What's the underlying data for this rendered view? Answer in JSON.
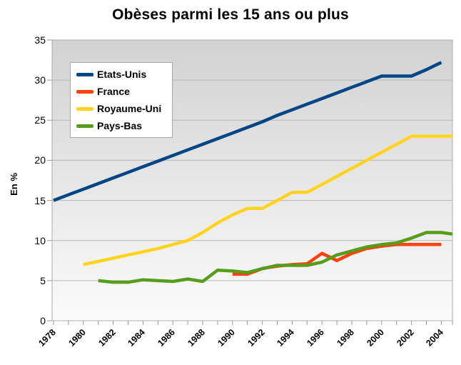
{
  "title": "Obèses parmi les 15 ans ou plus",
  "y_axis": {
    "label": "En %",
    "ticks": [
      0,
      5,
      10,
      15,
      20,
      25,
      30,
      35
    ]
  },
  "x_axis": {
    "label_years": [
      1978,
      1980,
      1982,
      1984,
      1986,
      1988,
      1990,
      1992,
      1994,
      1996,
      1998,
      2000,
      2002,
      2004
    ],
    "minor_tick_start": 1978,
    "minor_tick_end": 2005
  },
  "legend": {
    "items": [
      {
        "id": "etats-unis",
        "label": "Etats-Unis",
        "color": "#004586"
      },
      {
        "id": "france",
        "label": "France",
        "color": "#ff420e"
      },
      {
        "id": "royaume-uni",
        "label": "Royaume-Uni",
        "color": "#ffd320"
      },
      {
        "id": "pays-bas",
        "label": "Pays-Bas",
        "color": "#579d1c"
      }
    ]
  },
  "colors": {
    "etats_unis": "#004586",
    "france": "#ff420e",
    "royaume_uni": "#ffd320",
    "pays_bas": "#579d1c",
    "gridline": "#b6b6b6",
    "axis": "#999999",
    "plot_border": "#ababab",
    "plot_bg_top": "#d2d2d2",
    "plot_bg_bottom": "#fbfbfb"
  },
  "chart_data": {
    "type": "line",
    "title": "Obèses parmi les 15 ans ou plus",
    "xlabel": "",
    "ylabel": "En %",
    "ylim": [
      0,
      35
    ],
    "xlim": [
      1978,
      2005
    ],
    "grid": "horizontal",
    "legend_position": "top-left",
    "x_tick_labels": [
      1978,
      1980,
      1982,
      1984,
      1986,
      1988,
      1990,
      1992,
      1994,
      1996,
      1998,
      2000,
      2002,
      2004
    ],
    "series": [
      {
        "id": "etats-unis",
        "name": "Etats-Unis",
        "color": "#004586",
        "start_year": 1978,
        "step": 1,
        "values": [
          15.0,
          15.7,
          16.4,
          17.1,
          17.8,
          18.5,
          19.2,
          19.9,
          20.6,
          21.3,
          22.0,
          22.7,
          23.4,
          24.1,
          24.8,
          25.6,
          26.3,
          27.0,
          27.7,
          28.4,
          29.1,
          29.8,
          30.5,
          30.5,
          30.5,
          31.3,
          32.2
        ]
      },
      {
        "id": "france",
        "name": "France",
        "color": "#ff420e",
        "start_year": 1990,
        "step": 1,
        "values": [
          5.8,
          5.8,
          6.5,
          6.8,
          7.0,
          7.1,
          8.4,
          7.5,
          8.4,
          9.0,
          9.3,
          9.5,
          9.5,
          9.5,
          9.5
        ]
      },
      {
        "id": "royaume-uni",
        "name": "Royaume-Uni",
        "color": "#ffd320",
        "start_year": 1980,
        "step": 1,
        "values": [
          7.0,
          7.4,
          7.8,
          8.2,
          8.6,
          9.0,
          9.5,
          10.0,
          11.0,
          12.2,
          13.2,
          14.0,
          14.0,
          15.0,
          16.0,
          16.0,
          17.0,
          18.0,
          19.0,
          20.0,
          21.0,
          22.0,
          23.0,
          23.0,
          23.0,
          23.0
        ]
      },
      {
        "id": "pays-bas",
        "name": "Pays-Bas",
        "color": "#579d1c",
        "start_year": 1981,
        "step": 1,
        "values": [
          5.0,
          4.8,
          4.8,
          5.1,
          5.0,
          4.9,
          5.2,
          4.9,
          6.3,
          6.2,
          6.0,
          6.5,
          6.9,
          6.9,
          6.9,
          7.3,
          8.2,
          8.7,
          9.2,
          9.5,
          9.7,
          10.3,
          11.0,
          11.0,
          10.8
        ]
      }
    ]
  }
}
